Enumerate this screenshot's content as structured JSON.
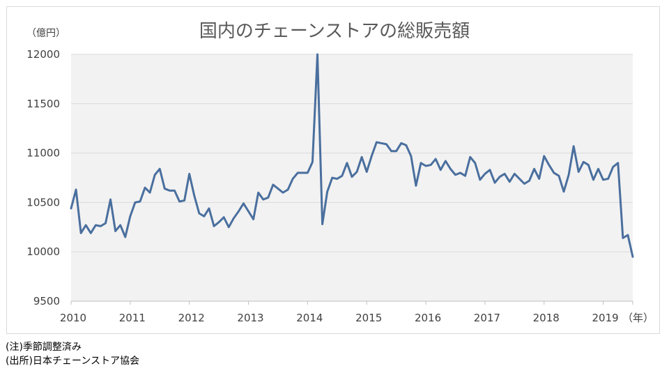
{
  "title": "国内のチェーンストアの総販売額",
  "unit_label": "（億円）",
  "x_unit_label": "（年）",
  "notes": [
    "(注)季節調整済み",
    "(出所)日本チェーンストア協会"
  ],
  "colors": {
    "line": "#4a6f9e",
    "plot_bg": "#f2f2f2",
    "grid": "#d9d9d9"
  },
  "chart_data": {
    "type": "line",
    "title": "国内のチェーンストアの総販売額",
    "ylabel": "（億円）",
    "xlabel": "（年）",
    "ylim": [
      9500,
      12000
    ],
    "yticks": [
      9500,
      10000,
      10500,
      11000,
      11500,
      12000
    ],
    "x_tick_labels": [
      "2010",
      "2011",
      "2012",
      "2013",
      "2014",
      "2015",
      "2016",
      "2017",
      "2018",
      "2019"
    ],
    "grid": true,
    "legend": false,
    "x_start": "2010-01",
    "x_frequency": "monthly",
    "series": [
      {
        "values": [
          10440,
          10630,
          10190,
          10270,
          10190,
          10270,
          10260,
          10290,
          10530,
          10210,
          10270,
          10150,
          10360,
          10500,
          10510,
          10650,
          10600,
          10780,
          10840,
          10640,
          10620,
          10620,
          10510,
          10520,
          10790,
          10570,
          10390,
          10360,
          10440,
          10260,
          10300,
          10350,
          10250,
          10340,
          10410,
          10490,
          10410,
          10330,
          10600,
          10530,
          10550,
          10680,
          10640,
          10600,
          10630,
          10740,
          10800,
          10800,
          10800,
          10910,
          12000,
          10280,
          10610,
          10750,
          10740,
          10770,
          10900,
          10760,
          10810,
          10960,
          10810,
          10970,
          11110,
          11100,
          11090,
          11020,
          11020,
          11100,
          11080,
          10970,
          10670,
          10900,
          10870,
          10880,
          10940,
          10830,
          10920,
          10840,
          10780,
          10800,
          10770,
          10960,
          10900,
          10730,
          10790,
          10830,
          10700,
          10760,
          10790,
          10710,
          10790,
          10740,
          10690,
          10720,
          10840,
          10740,
          10970,
          10880,
          10800,
          10770,
          10610,
          10780,
          11070,
          10810,
          10910,
          10880,
          10730,
          10840,
          10730,
          10740,
          10860,
          10900,
          10140,
          10170,
          9950
        ]
      }
    ]
  }
}
